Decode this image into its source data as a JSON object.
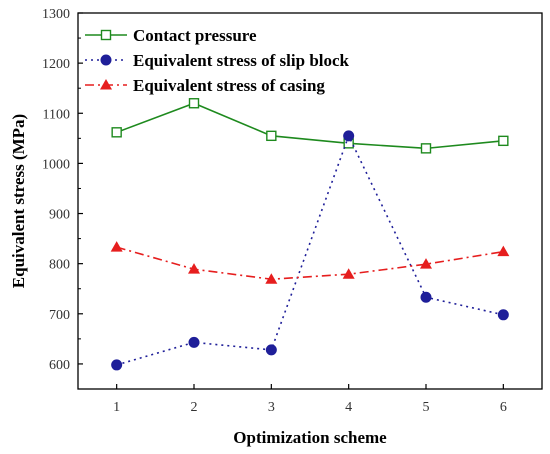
{
  "chart_data": {
    "type": "line",
    "xlabel": "Optimization scheme",
    "ylabel": "Equivalent stress (MPa)",
    "x": [
      1,
      2,
      3,
      4,
      5,
      6
    ],
    "xlim": [
      0.5,
      6.5
    ],
    "ylim": [
      550,
      1300
    ],
    "xticks": [
      "1",
      "2",
      "3",
      "4",
      "5",
      "6"
    ],
    "yticks": [
      "600",
      "700",
      "800",
      "900",
      "1000",
      "1100",
      "1200",
      "1300"
    ],
    "grid": false,
    "legend_position": "top-left",
    "series": [
      {
        "name": "Contact pressure",
        "values": [
          1062,
          1120,
          1055,
          1040,
          1030,
          1045
        ],
        "color": "#1e8a1e",
        "line_style": "solid",
        "marker": "open-square"
      },
      {
        "name": "Equivalent stress of slip block",
        "values": [
          598,
          643,
          628,
          1055,
          733,
          698
        ],
        "color": "#1f1f99",
        "line_style": "dotted",
        "marker": "filled-circle"
      },
      {
        "name": "Equivalent stress of casing",
        "values": [
          833,
          789,
          769,
          779,
          799,
          824
        ],
        "color": "#e61e1e",
        "line_style": "dash-dot",
        "marker": "filled-triangle"
      }
    ]
  }
}
